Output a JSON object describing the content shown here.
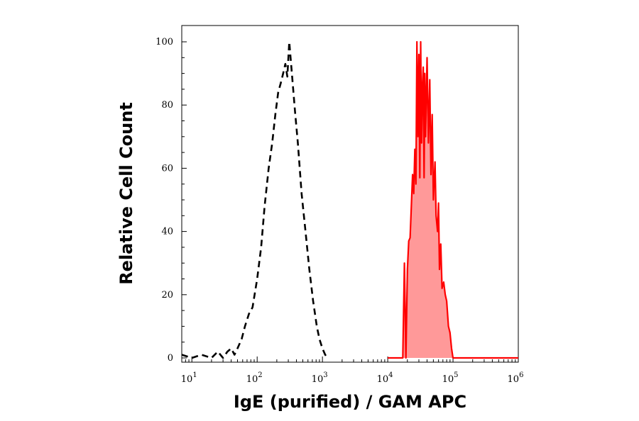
{
  "chart_data": {
    "type": "area",
    "title": "",
    "xlabel": "IgE (purified) / GAM APC",
    "ylabel": "Relative Cell Count",
    "x_scale": "log",
    "xlim": [
      7,
      1000000
    ],
    "ylim": [
      0,
      100
    ],
    "x_ticks": [
      {
        "value": 10,
        "base": "10",
        "exp": "1"
      },
      {
        "value": 100,
        "base": "10",
        "exp": "2"
      },
      {
        "value": 1000,
        "base": "10",
        "exp": "3"
      },
      {
        "value": 10000,
        "base": "10",
        "exp": "4"
      },
      {
        "value": 100000,
        "base": "10",
        "exp": "5"
      },
      {
        "value": 1000000,
        "base": "10",
        "exp": "6"
      }
    ],
    "y_ticks": [
      0,
      20,
      40,
      60,
      80,
      100
    ],
    "grid": false,
    "legend": "none",
    "series": [
      {
        "style": "dashed-unfilled",
        "color": "#000000",
        "x": [
          7,
          10,
          14,
          20,
          25,
          30,
          35,
          40,
          45,
          50,
          58,
          65,
          75,
          85,
          100,
          115,
          130,
          150,
          170,
          190,
          210,
          230,
          250,
          270,
          290,
          310,
          340,
          380,
          420,
          480,
          550,
          630,
          720,
          820,
          900,
          1000,
          1100,
          1200
        ],
        "y": [
          1,
          0,
          1,
          0,
          2,
          0,
          2,
          3,
          1,
          3,
          6,
          10,
          14,
          16,
          25,
          35,
          48,
          60,
          68,
          77,
          84,
          87,
          90,
          93,
          89,
          100,
          90,
          78,
          68,
          52,
          40,
          28,
          18,
          10,
          6,
          3,
          1,
          0
        ]
      },
      {
        "style": "solid-filled",
        "color": "#ff0000",
        "fill": "#ff9999",
        "x": [
          10000,
          17000,
          18000,
          19000,
          20000,
          21000,
          22000,
          24000,
          25000,
          26000,
          27000,
          28000,
          29000,
          30000,
          31000,
          32000,
          33000,
          34000,
          35000,
          36000,
          37000,
          38000,
          40000,
          42000,
          44000,
          46000,
          48000,
          50000,
          53000,
          55000,
          58000,
          60000,
          62000,
          65000,
          68000,
          72000,
          76000,
          80000,
          85000,
          90000,
          95000,
          100000,
          1000000
        ],
        "y": [
          0,
          0,
          30,
          0,
          28,
          37,
          38,
          58,
          52,
          66,
          55,
          100,
          70,
          96,
          57,
          100,
          68,
          86,
          92,
          57,
          90,
          70,
          95,
          68,
          88,
          58,
          77,
          50,
          62,
          45,
          40,
          49,
          28,
          36,
          22,
          24,
          20,
          18,
          10,
          8,
          3,
          0,
          0
        ]
      }
    ]
  }
}
